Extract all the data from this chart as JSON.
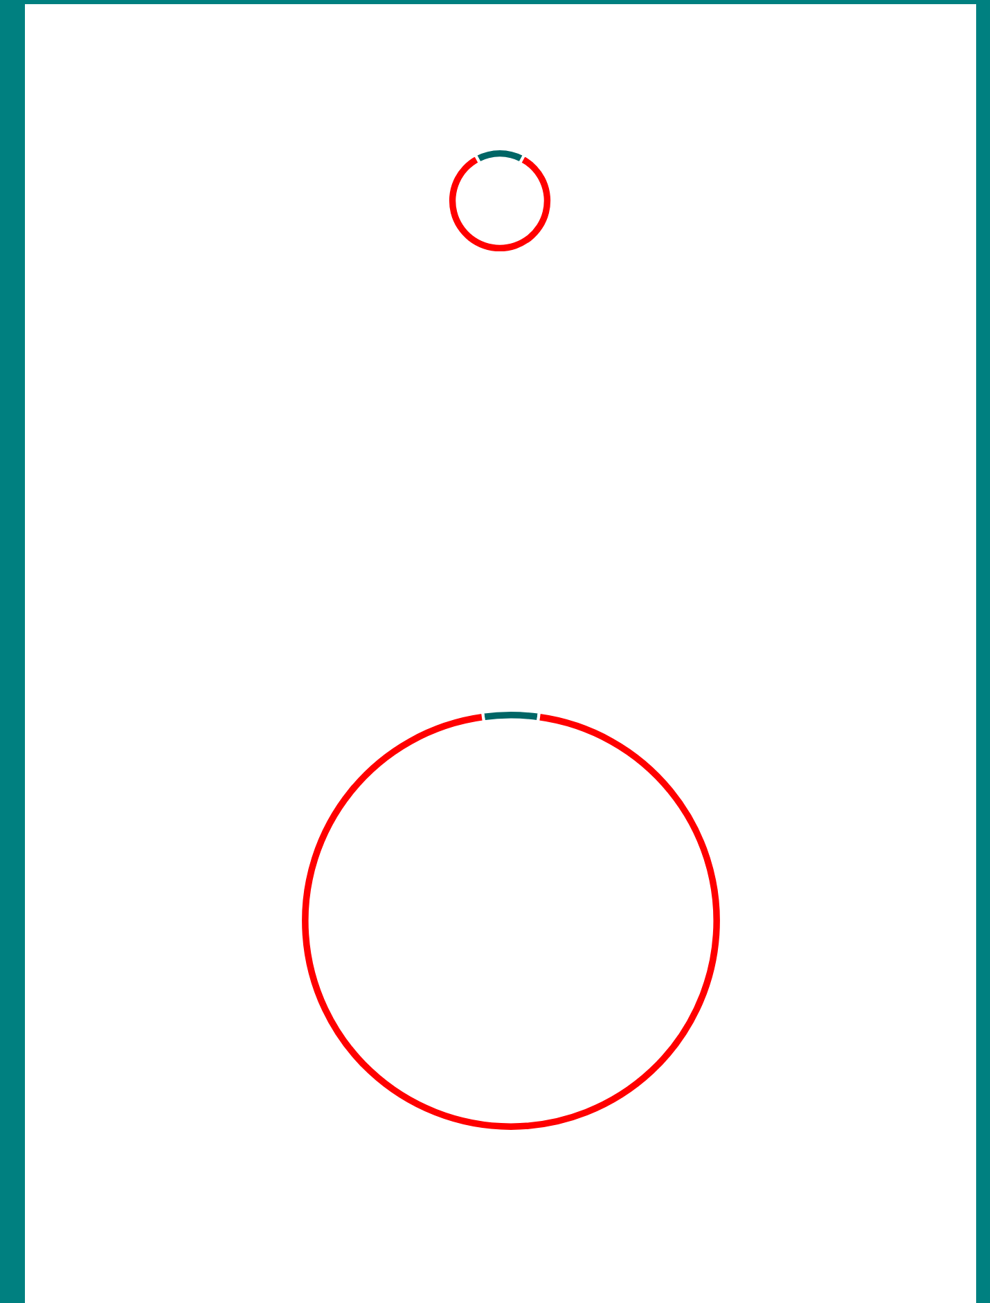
{
  "chart_data": [
    {
      "type": "donut",
      "categories": [
        null,
        null
      ],
      "values": [
        15.6,
        84.4
      ],
      "colors": [
        "#006666",
        "#ff0000"
      ]
    },
    {
      "type": "donut",
      "categories": [
        null,
        null
      ],
      "values": [
        4.3,
        95.7
      ],
      "colors": [
        "#006666",
        "#ff0000"
      ]
    }
  ]
}
